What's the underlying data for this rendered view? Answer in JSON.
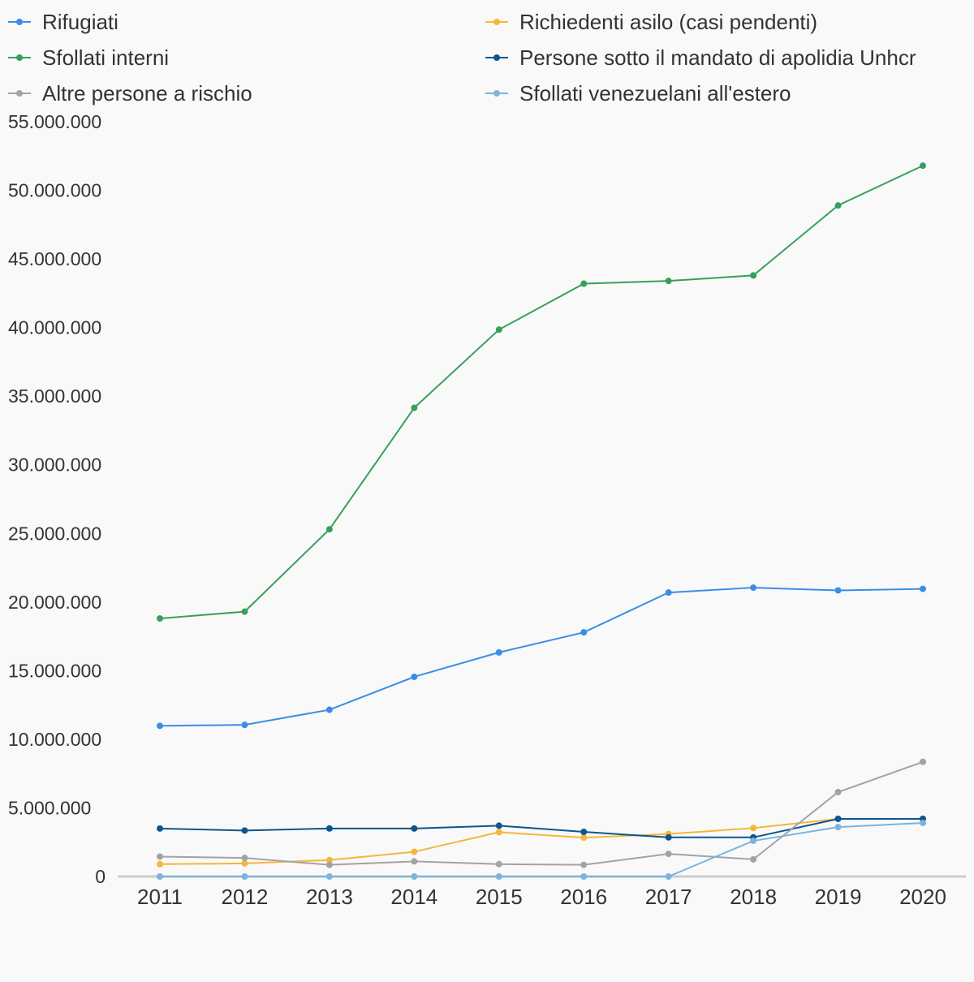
{
  "chart_data": {
    "type": "line",
    "title": "",
    "xlabel": "",
    "ylabel": "",
    "x": [
      "2011",
      "2012",
      "2013",
      "2014",
      "2015",
      "2016",
      "2017",
      "2018",
      "2019",
      "2020"
    ],
    "ylim": [
      0,
      55000000
    ],
    "yticks": [
      0,
      5000000,
      10000000,
      15000000,
      20000000,
      25000000,
      30000000,
      35000000,
      40000000,
      45000000,
      50000000,
      55000000
    ],
    "ytick_labels": [
      "0",
      "5.000.000",
      "10.000.000",
      "15.000.000",
      "20.000.000",
      "25.000.000",
      "30.000.000",
      "35.000.000",
      "40.000.000",
      "45.000.000",
      "50.000.000",
      "55.000.000"
    ],
    "grid": false,
    "legend_position": "top",
    "series": [
      {
        "name": "Rifugiati",
        "color": "#3a8ee6",
        "values": [
          10980000,
          11050000,
          12150000,
          14550000,
          16330000,
          17790000,
          20690000,
          21050000,
          20850000,
          20960000
        ]
      },
      {
        "name": "Richiedenti asilo (casi pendenti)",
        "color": "#f5b63b",
        "values": [
          900000,
          950000,
          1200000,
          1800000,
          3230000,
          2830000,
          3100000,
          3530000,
          4200000,
          4200000
        ]
      },
      {
        "name": "Sfollati interni",
        "color": "#36a05a",
        "values": [
          18800000,
          19300000,
          25300000,
          34150000,
          39850000,
          43200000,
          43400000,
          43800000,
          48900000,
          51800000
        ]
      },
      {
        "name": "Persone sotto il mandato di apolidia Unhcr",
        "color": "#0c568d",
        "values": [
          3500000,
          3350000,
          3500000,
          3500000,
          3700000,
          3250000,
          2850000,
          2850000,
          4200000,
          4200000
        ]
      },
      {
        "name": "Altre persone a rischio",
        "color": "#a3a3a3",
        "values": [
          1450000,
          1350000,
          850000,
          1100000,
          900000,
          850000,
          1650000,
          1250000,
          6150000,
          8350000
        ]
      },
      {
        "name": "Sfollati venezuelani all'estero",
        "color": "#7cb4dc",
        "values": [
          0,
          0,
          0,
          0,
          0,
          0,
          0,
          2600000,
          3600000,
          3900000
        ]
      }
    ]
  }
}
